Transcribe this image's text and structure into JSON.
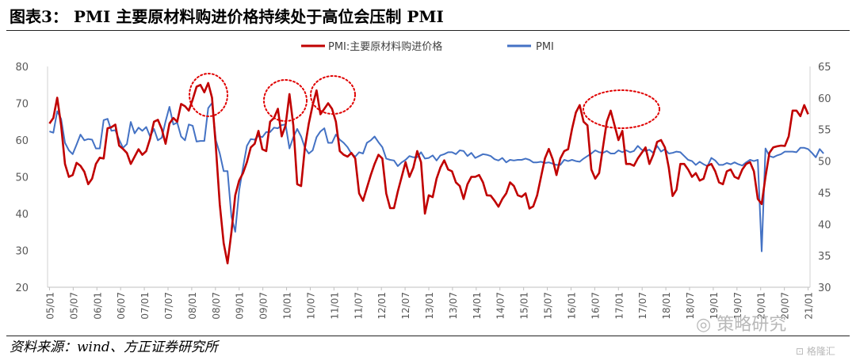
{
  "title": "图表3： PMI 主要原材料购进价格持续处于高位会压制 PMI",
  "source": "资料来源：wind、方正证券研究所",
  "watermark": "策略研究",
  "watermark_brand": "格隆汇",
  "colors": {
    "primary": "#c00000",
    "secondary": "#4472c4",
    "annotation": "#e00000"
  },
  "chart_data": {
    "type": "line",
    "xlabel": "",
    "ylabel": "",
    "x_ticks": [
      "05/01",
      "05/07",
      "06/01",
      "06/07",
      "07/01",
      "07/07",
      "08/01",
      "08/07",
      "09/01",
      "09/07",
      "10/01",
      "10/07",
      "11/01",
      "11/07",
      "12/01",
      "12/07",
      "13/01",
      "13/07",
      "14/01",
      "14/07",
      "15/01",
      "15/07",
      "16/01",
      "16/07",
      "17/01",
      "17/07",
      "18/01",
      "18/07",
      "19/01",
      "19/07",
      "20/01",
      "20/07",
      "21/01"
    ],
    "y_left": {
      "lim": [
        20,
        80
      ],
      "ticks": [
        20,
        30,
        40,
        50,
        60,
        70,
        80
      ]
    },
    "y_right": {
      "lim": [
        30,
        65
      ],
      "ticks": [
        30,
        35,
        40,
        45,
        50,
        55,
        60,
        65
      ]
    },
    "legend": {
      "position": "top-center"
    },
    "series": [
      {
        "name": "PMI:主要原材料购进价格",
        "axis": "left",
        "color": "#c00000",
        "values": [
          64.5,
          66.0,
          71.5,
          64.0,
          53.5,
          50.0,
          50.5,
          53.8,
          53.0,
          51.4,
          48.0,
          49.5,
          53.5,
          55.2,
          55.0,
          63.2,
          63.5,
          64.2,
          58.5,
          57.6,
          56.5,
          53.5,
          55.5,
          57.5,
          56.0,
          57.0,
          60.4,
          65.0,
          65.5,
          63.0,
          59.0,
          64.5,
          66.0,
          65.0,
          69.8,
          69.2,
          68.0,
          71.0,
          74.5,
          75.0,
          73.0,
          75.5,
          71.5,
          58.0,
          42.5,
          32.0,
          26.5,
          35.0,
          45.0,
          49.0,
          51.0,
          54.0,
          58.0,
          59.0,
          62.5,
          57.5,
          57.0,
          65.0,
          66.0,
          68.5,
          61.0,
          64.0,
          72.5,
          64.0,
          48.0,
          47.5,
          58.0,
          64.5,
          69.5,
          73.5,
          67.0,
          68.5,
          70.0,
          68.5,
          65.0,
          57.0,
          56.0,
          55.5,
          56.5,
          55.0,
          45.5,
          43.5,
          47.0,
          50.5,
          53.5,
          56.0,
          55.0,
          45.5,
          41.5,
          41.5,
          46.0,
          50.0,
          54.0,
          50.0,
          52.5,
          57.0,
          54.0,
          40.0,
          45.0,
          44.5,
          49.5,
          52.5,
          54.5,
          52.0,
          51.5,
          48.5,
          47.5,
          44.0,
          48.0,
          50.0,
          50.0,
          50.5,
          48.5,
          45.0,
          44.9,
          43.5,
          41.9,
          44.0,
          45.5,
          48.5,
          47.5,
          45.0,
          44.6,
          45.5,
          41.4,
          42.0,
          45.0,
          50.0,
          55.0,
          57.6,
          54.8,
          50.5,
          55.0,
          57.0,
          57.5,
          63.0,
          67.5,
          69.5,
          65.0,
          64.0,
          52.0,
          49.5,
          51.0,
          58.0,
          65.0,
          68.0,
          64.0,
          60.0,
          62.5,
          53.5,
          53.5,
          53.0,
          55.0,
          56.5,
          58.0,
          53.5,
          56.0,
          59.5,
          60.0,
          58.0,
          52.5,
          44.8,
          46.5,
          53.5,
          53.5,
          52.0,
          50.0,
          51.0,
          49.0,
          49.5,
          53.0,
          53.5,
          51.5,
          48.5,
          48.0,
          51.5,
          52.0,
          50.0,
          49.5,
          52.0,
          53.5,
          54.0,
          51.5,
          44.0,
          42.6,
          50.0,
          56.5,
          58.0,
          58.3,
          58.5,
          58.4,
          61.0,
          68.0,
          68.0,
          66.5,
          69.5,
          67.0
        ]
      },
      {
        "name": "PMI",
        "axis": "right",
        "color": "#4472c4",
        "values": [
          54.7,
          54.5,
          57.9,
          56.7,
          52.9,
          51.7,
          51.1,
          52.6,
          54.2,
          53.3,
          53.5,
          53.4,
          52.0,
          52.0,
          56.5,
          56.7,
          54.8,
          54.9,
          53.4,
          52.1,
          52.7,
          56.2,
          54.4,
          55.3,
          54.8,
          55.4,
          53.9,
          55.1,
          53.3,
          53.7,
          56.3,
          58.6,
          55.8,
          56.1,
          53.9,
          53.3,
          55.8,
          55.6,
          53.1,
          53.2,
          53.2,
          58.4,
          59.2,
          53.3,
          51.2,
          48.4,
          48.4,
          41.2,
          38.8,
          45.3,
          49.0,
          52.4,
          53.5,
          53.4,
          54.0,
          53.8,
          54.6,
          54.6,
          55.3,
          55.2,
          55.7,
          55.8,
          52.0,
          53.8,
          55.1,
          53.9,
          52.1,
          51.2,
          51.7,
          53.8,
          54.7,
          55.2,
          52.9,
          52.9,
          54.2,
          53.4,
          52.9,
          52.2,
          51.2,
          50.7,
          51.4,
          51.2,
          52.9,
          53.3,
          53.9,
          53.0,
          52.2,
          50.4,
          50.2,
          50.1,
          49.2,
          49.8,
          50.2,
          50.8,
          50.6,
          50.6,
          51.4,
          50.4,
          50.5,
          50.9,
          50.1,
          50.9,
          51.1,
          51.4,
          51.4,
          51.1,
          51.7,
          51.6,
          50.8,
          51.3,
          50.5,
          50.8,
          51.1,
          51.0,
          50.8,
          50.3,
          50.1,
          50.5,
          49.8,
          50.2,
          50.1,
          50.2,
          50.2,
          50.4,
          50.2,
          49.8,
          49.8,
          49.9,
          49.7,
          49.8,
          49.6,
          49.4,
          49.4,
          50.2,
          50.0,
          50.2,
          50.0,
          49.9,
          50.4,
          50.8,
          51.2,
          51.7,
          51.4,
          51.3,
          51.6,
          51.2,
          51.2,
          51.7,
          51.4,
          51.7,
          51.4,
          51.6,
          52.4,
          51.8,
          51.6,
          51.8,
          51.3,
          52.4,
          51.5,
          51.9,
          51.2,
          51.3,
          51.5,
          51.4,
          50.8,
          50.2,
          50.0,
          49.4,
          49.9,
          49.5,
          49.2,
          50.5,
          50.1,
          49.4,
          49.4,
          49.7,
          49.5,
          49.8,
          49.5,
          49.3,
          49.8,
          50.2,
          50.0,
          50.2,
          35.7,
          52.0,
          50.8,
          50.6,
          50.9,
          51.1,
          51.5,
          51.5,
          51.5,
          51.4,
          52.1,
          52.1,
          51.9,
          51.3,
          50.6,
          51.9,
          51.2
        ]
      }
    ],
    "annotations": [
      "dotted-ellipse",
      "dotted-ellipse",
      "dotted-ellipse",
      "dotted-ellipse"
    ]
  }
}
